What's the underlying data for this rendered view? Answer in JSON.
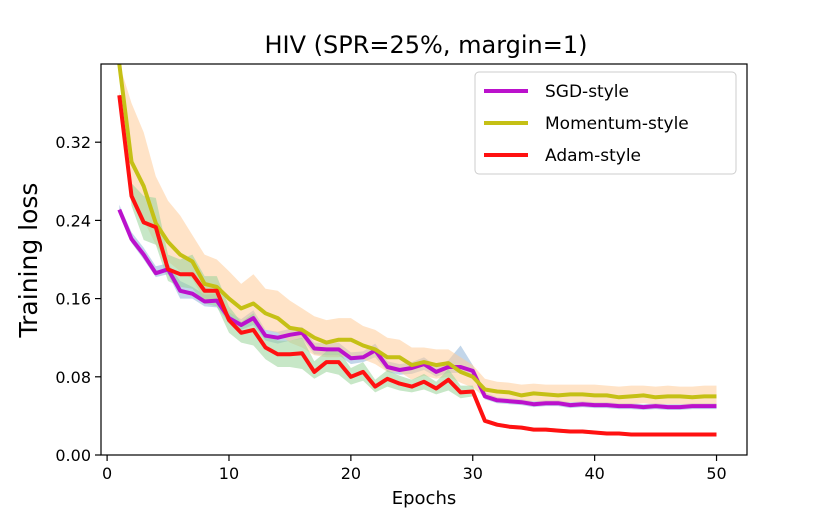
{
  "chart_data": {
    "type": "line",
    "title": "HIV (SPR=25%, margin=1)",
    "xlabel": "Epochs",
    "ylabel": "Training loss",
    "xlim": [
      -0.5,
      52.5
    ],
    "ylim": [
      0.0,
      0.4
    ],
    "xticks": [
      0,
      10,
      20,
      30,
      40,
      50
    ],
    "xtick_labels": [
      "0",
      "10",
      "20",
      "30",
      "40",
      "50"
    ],
    "yticks": [
      0.0,
      0.08,
      0.16,
      0.24,
      0.32
    ],
    "ytick_labels": [
      "0.00",
      "0.08",
      "0.16",
      "0.24",
      "0.32"
    ],
    "grid": false,
    "legend_position": "top-right",
    "x": [
      1,
      2,
      3,
      4,
      5,
      6,
      7,
      8,
      9,
      10,
      11,
      12,
      13,
      14,
      15,
      16,
      17,
      18,
      19,
      20,
      21,
      22,
      23,
      24,
      25,
      26,
      27,
      28,
      29,
      30,
      31,
      32,
      33,
      34,
      35,
      36,
      37,
      38,
      39,
      40,
      41,
      42,
      43,
      44,
      45,
      46,
      47,
      48,
      49,
      50
    ],
    "series": [
      {
        "name": "SGD-style",
        "color": "#bb11cc",
        "band_color": "#90b4d8",
        "values": [
          0.251,
          0.221,
          0.205,
          0.186,
          0.19,
          0.168,
          0.165,
          0.157,
          0.158,
          0.14,
          0.133,
          0.14,
          0.122,
          0.12,
          0.123,
          0.125,
          0.109,
          0.108,
          0.108,
          0.099,
          0.1,
          0.107,
          0.09,
          0.087,
          0.089,
          0.093,
          0.085,
          0.09,
          0.09,
          0.086,
          0.06,
          0.056,
          0.055,
          0.054,
          0.052,
          0.053,
          0.053,
          0.051,
          0.052,
          0.051,
          0.051,
          0.05,
          0.05,
          0.049,
          0.05,
          0.049,
          0.049,
          0.05,
          0.05,
          0.05
        ],
        "band_lower": [
          0.248,
          0.217,
          0.2,
          0.182,
          0.185,
          0.16,
          0.16,
          0.152,
          0.151,
          0.135,
          0.128,
          0.133,
          0.117,
          0.114,
          0.117,
          0.119,
          0.103,
          0.102,
          0.102,
          0.093,
          0.095,
          0.1,
          0.085,
          0.082,
          0.083,
          0.087,
          0.08,
          0.084,
          0.084,
          0.081,
          0.057,
          0.053,
          0.052,
          0.051,
          0.049,
          0.05,
          0.05,
          0.048,
          0.049,
          0.048,
          0.048,
          0.047,
          0.047,
          0.046,
          0.047,
          0.046,
          0.046,
          0.047,
          0.047,
          0.047
        ],
        "band_upper": [
          0.256,
          0.228,
          0.212,
          0.193,
          0.196,
          0.178,
          0.172,
          0.164,
          0.165,
          0.146,
          0.139,
          0.148,
          0.128,
          0.126,
          0.129,
          0.131,
          0.115,
          0.114,
          0.115,
          0.105,
          0.106,
          0.114,
          0.096,
          0.093,
          0.095,
          0.1,
          0.091,
          0.097,
          0.112,
          0.092,
          0.064,
          0.059,
          0.058,
          0.057,
          0.055,
          0.056,
          0.056,
          0.054,
          0.055,
          0.054,
          0.054,
          0.053,
          0.053,
          0.052,
          0.053,
          0.052,
          0.052,
          0.053,
          0.053,
          0.053
        ]
      },
      {
        "name": "Momentum-style",
        "color": "#c5c015",
        "band_color": "#ffcc99",
        "values": [
          0.4,
          0.3,
          0.275,
          0.237,
          0.218,
          0.205,
          0.198,
          0.175,
          0.172,
          0.16,
          0.15,
          0.155,
          0.145,
          0.14,
          0.13,
          0.128,
          0.12,
          0.115,
          0.118,
          0.118,
          0.112,
          0.108,
          0.1,
          0.1,
          0.092,
          0.095,
          0.092,
          0.094,
          0.085,
          0.08,
          0.067,
          0.065,
          0.064,
          0.061,
          0.063,
          0.062,
          0.061,
          0.062,
          0.062,
          0.061,
          0.061,
          0.059,
          0.06,
          0.061,
          0.059,
          0.06,
          0.06,
          0.059,
          0.06,
          0.06
        ],
        "band_lower": [
          0.4,
          0.265,
          0.24,
          0.215,
          0.198,
          0.188,
          0.18,
          0.158,
          0.158,
          0.145,
          0.135,
          0.135,
          0.128,
          0.125,
          0.115,
          0.11,
          0.102,
          0.1,
          0.1,
          0.101,
          0.098,
          0.093,
          0.085,
          0.085,
          0.077,
          0.081,
          0.078,
          0.08,
          0.074,
          0.069,
          0.059,
          0.057,
          0.056,
          0.054,
          0.055,
          0.054,
          0.053,
          0.054,
          0.054,
          0.053,
          0.053,
          0.052,
          0.052,
          0.053,
          0.052,
          0.052,
          0.052,
          0.051,
          0.052,
          0.052
        ],
        "band_upper": [
          0.4,
          0.36,
          0.33,
          0.285,
          0.26,
          0.245,
          0.225,
          0.205,
          0.2,
          0.188,
          0.175,
          0.185,
          0.17,
          0.168,
          0.158,
          0.15,
          0.142,
          0.138,
          0.14,
          0.14,
          0.132,
          0.128,
          0.12,
          0.118,
          0.11,
          0.11,
          0.108,
          0.108,
          0.1,
          0.092,
          0.078,
          0.075,
          0.074,
          0.072,
          0.073,
          0.072,
          0.072,
          0.072,
          0.072,
          0.072,
          0.071,
          0.07,
          0.071,
          0.071,
          0.07,
          0.071,
          0.07,
          0.07,
          0.071,
          0.071
        ]
      },
      {
        "name": "Adam-style",
        "color": "#ff1111",
        "band_color": "#99d499",
        "values": [
          0.368,
          0.265,
          0.238,
          0.233,
          0.19,
          0.185,
          0.185,
          0.168,
          0.168,
          0.138,
          0.125,
          0.128,
          0.11,
          0.103,
          0.103,
          0.104,
          0.085,
          0.095,
          0.095,
          0.08,
          0.085,
          0.07,
          0.078,
          0.073,
          0.07,
          0.075,
          0.068,
          0.077,
          0.064,
          0.065,
          0.035,
          0.031,
          0.029,
          0.028,
          0.026,
          0.026,
          0.025,
          0.024,
          0.024,
          0.023,
          0.022,
          0.022,
          0.021,
          0.021,
          0.021,
          0.021,
          0.021,
          0.021,
          0.021,
          0.021
        ],
        "band_lower": [
          0.365,
          0.255,
          0.22,
          0.215,
          0.178,
          0.172,
          0.17,
          0.155,
          0.152,
          0.125,
          0.115,
          0.112,
          0.098,
          0.09,
          0.09,
          0.088,
          0.078,
          0.085,
          0.082,
          0.072,
          0.076,
          0.064,
          0.07,
          0.066,
          0.064,
          0.067,
          0.062,
          0.066,
          0.058,
          0.06,
          0.033,
          0.029,
          0.027,
          0.026,
          0.024,
          0.024,
          0.023,
          0.022,
          0.022,
          0.021,
          0.021,
          0.021,
          0.02,
          0.02,
          0.02,
          0.02,
          0.02,
          0.02,
          0.02,
          0.02
        ],
        "band_upper": [
          0.372,
          0.278,
          0.265,
          0.263,
          0.205,
          0.2,
          0.205,
          0.183,
          0.183,
          0.152,
          0.136,
          0.145,
          0.123,
          0.117,
          0.117,
          0.12,
          0.096,
          0.106,
          0.107,
          0.089,
          0.095,
          0.077,
          0.087,
          0.081,
          0.077,
          0.083,
          0.075,
          0.088,
          0.071,
          0.071,
          0.037,
          0.033,
          0.031,
          0.03,
          0.028,
          0.028,
          0.027,
          0.026,
          0.026,
          0.025,
          0.023,
          0.023,
          0.022,
          0.022,
          0.022,
          0.022,
          0.022,
          0.022,
          0.022,
          0.022
        ]
      }
    ]
  }
}
